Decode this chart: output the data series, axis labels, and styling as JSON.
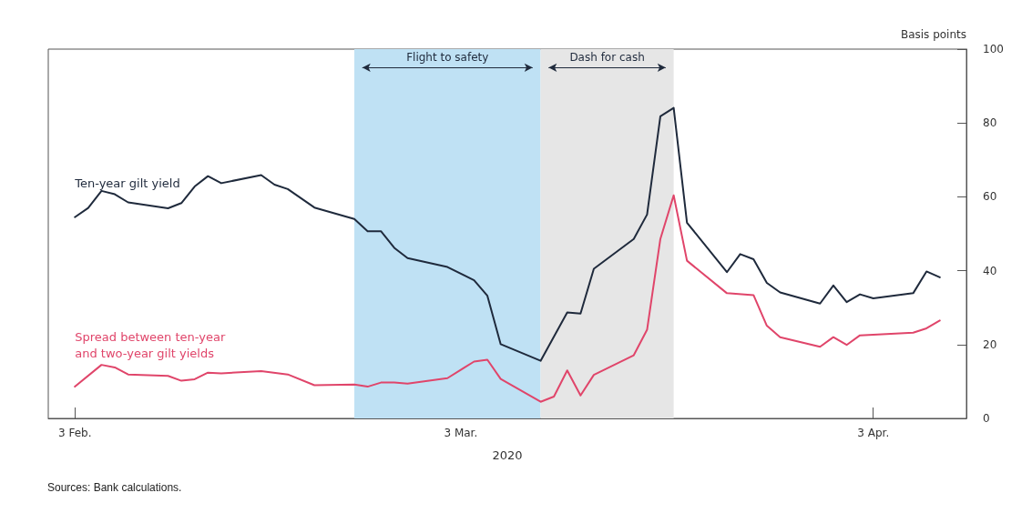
{
  "chart_data": {
    "type": "line",
    "ylabel": "Basis points",
    "xlabel": "2020",
    "xlim": [
      "2020-02-01",
      "2020-04-10"
    ],
    "xticks": [
      {
        "value": "2020-02-03",
        "label": "3 Feb."
      },
      {
        "value": "2020-03-03",
        "label": "3 Mar."
      },
      {
        "value": "2020-04-03",
        "label": "3 Apr."
      }
    ],
    "ylim": [
      0,
      100
    ],
    "yticks": [
      0,
      20,
      40,
      60,
      80,
      100
    ],
    "grid": false,
    "legend": false,
    "marker": "none",
    "line_style": "solid",
    "bands": [
      {
        "axis": "x",
        "from": "2020-02-24",
        "to": "2020-03-09",
        "label": "Flight to safety",
        "color": "#bfe1f4"
      },
      {
        "axis": "x",
        "from": "2020-03-09",
        "to": "2020-03-19",
        "label": "Dash for cash",
        "color": "#e6e6e6"
      }
    ],
    "series": [
      {
        "name": "Ten-year gilt yield",
        "color": "#1f2a3c",
        "x": [
          "2020-02-03",
          "2020-02-04",
          "2020-02-05",
          "2020-02-06",
          "2020-02-07",
          "2020-02-10",
          "2020-02-11",
          "2020-02-12",
          "2020-02-13",
          "2020-02-14",
          "2020-02-17",
          "2020-02-18",
          "2020-02-19",
          "2020-02-21",
          "2020-02-24",
          "2020-02-25",
          "2020-02-26",
          "2020-02-27",
          "2020-02-28",
          "2020-03-02",
          "2020-03-04",
          "2020-03-05",
          "2020-03-06",
          "2020-03-09",
          "2020-03-11",
          "2020-03-12",
          "2020-03-13",
          "2020-03-16",
          "2020-03-17",
          "2020-03-18",
          "2020-03-19",
          "2020-03-20",
          "2020-03-23",
          "2020-03-24",
          "2020-03-25",
          "2020-03-26",
          "2020-03-27",
          "2020-03-30",
          "2020-03-31",
          "2020-04-01",
          "2020-04-02",
          "2020-04-03",
          "2020-04-06",
          "2020-04-07",
          "2020-04-08"
        ],
        "values": [
          54.5,
          57,
          61.6,
          60.7,
          58.5,
          56.9,
          58.3,
          62.8,
          65.6,
          63.7,
          65.9,
          63.3,
          62.1,
          57.1,
          54,
          50.7,
          50.7,
          46.2,
          43.4,
          41,
          37.4,
          33.2,
          20.1,
          15.6,
          28.7,
          28.4,
          40.5,
          48.6,
          55.2,
          81.8,
          84.1,
          53,
          39.6,
          44.5,
          43.1,
          36.7,
          34.1,
          31.1,
          36,
          31.5,
          33.6,
          32.5,
          33.9,
          39.8,
          38.2
        ]
      },
      {
        "name": "Spread between ten-year\nand two-year gilt yields",
        "color": "#e0456a",
        "x": [
          "2020-02-03",
          "2020-02-05",
          "2020-02-06",
          "2020-02-07",
          "2020-02-10",
          "2020-02-11",
          "2020-02-12",
          "2020-02-13",
          "2020-02-14",
          "2020-02-17",
          "2020-02-19",
          "2020-02-21",
          "2020-02-24",
          "2020-02-25",
          "2020-02-26",
          "2020-02-27",
          "2020-02-28",
          "2020-03-02",
          "2020-03-04",
          "2020-03-05",
          "2020-03-06",
          "2020-03-09",
          "2020-03-10",
          "2020-03-11",
          "2020-03-12",
          "2020-03-13",
          "2020-03-16",
          "2020-03-17",
          "2020-03-18",
          "2020-03-19",
          "2020-03-20",
          "2020-03-23",
          "2020-03-25",
          "2020-03-26",
          "2020-03-27",
          "2020-03-30",
          "2020-03-31",
          "2020-04-01",
          "2020-04-02",
          "2020-04-06",
          "2020-04-07",
          "2020-04-08"
        ],
        "values": [
          8.6,
          14.5,
          13.8,
          11.9,
          11.5,
          10.2,
          10.6,
          12.4,
          12.2,
          12.8,
          11.9,
          9,
          9.2,
          8.6,
          9.7,
          9.7,
          9.4,
          10.9,
          15.4,
          15.9,
          10.7,
          4.5,
          5.9,
          13,
          6.2,
          11.8,
          17.1,
          24,
          48.6,
          60.4,
          42.7,
          33.9,
          33.4,
          25.1,
          22,
          19.4,
          22,
          19.9,
          22.5,
          23.2,
          24.4,
          26.5
        ]
      }
    ],
    "annotations": [
      "Sources: Bank calculations."
    ]
  }
}
